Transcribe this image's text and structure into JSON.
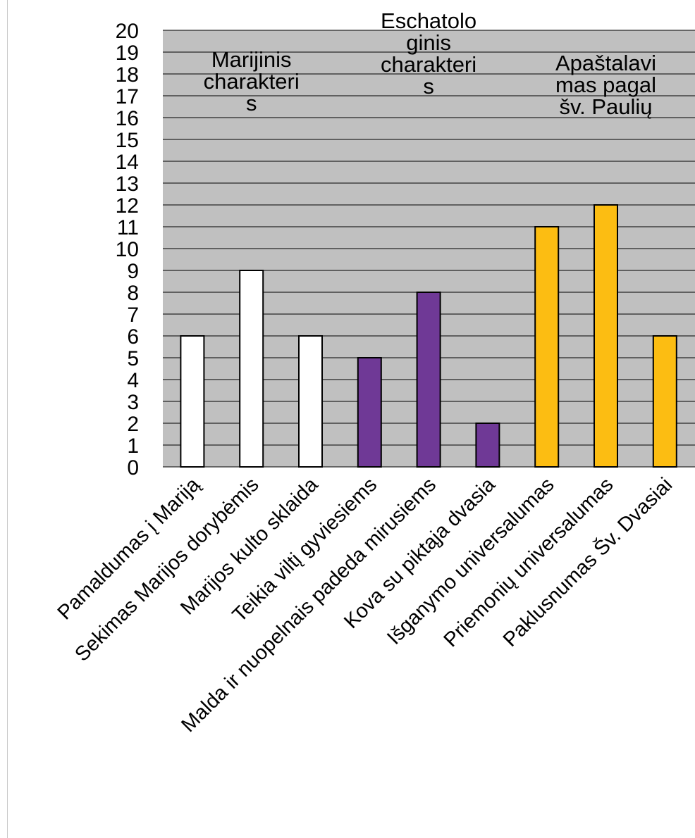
{
  "chart_data": {
    "type": "bar",
    "title": "",
    "xlabel": "",
    "ylabel": "",
    "ylim": [
      0,
      20
    ],
    "yticks": [
      "0",
      "1",
      "2",
      "3",
      "4",
      "5",
      "6",
      "7",
      "8",
      "9",
      "10",
      "11",
      "12",
      "13",
      "14",
      "15",
      "16",
      "17",
      "18",
      "19",
      "20"
    ],
    "grid": true,
    "colors": {
      "plot_background": "#c0c0c0",
      "gridline": "#000000",
      "bar_border": "#000000"
    },
    "categories": [
      "Pamaldumas į Mariją",
      "Sekimas Marijos dorybėmis",
      "Marijos kulto sklaida",
      "Teikia viltį gyviesiems",
      "Malda ir nuopelnais padeda mirusiems",
      "Kova su piktąja dvasia",
      "Išganymo universalumas",
      "Priemonių universalumas",
      "Paklusnumas Šv. Dvasiai"
    ],
    "values": [
      6,
      9,
      6,
      5,
      8,
      2,
      11,
      12,
      6
    ],
    "bar_colors": [
      "#ffffff",
      "#ffffff",
      "#ffffff",
      "#6f3996",
      "#6f3996",
      "#6f3996",
      "#fcbd12",
      "#fcbd12",
      "#fcbd12"
    ],
    "groups": [
      {
        "label_lines": [
          "Marijinis",
          "charakteri",
          "s"
        ]
      },
      {
        "label_lines": [
          "Eschatolo",
          "ginis",
          "charakteri",
          "s"
        ]
      },
      {
        "label_lines": [
          "Apaštalavi",
          "mas pagal",
          "šv. Paulių"
        ]
      }
    ]
  }
}
